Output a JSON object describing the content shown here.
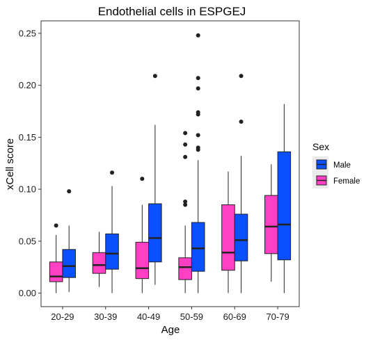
{
  "chart_data": {
    "type": "boxplot",
    "title": "Endothelial cells in ESPGEJ",
    "xlabel": "Age",
    "ylabel": "xCell score",
    "categories": [
      "20-29",
      "30-39",
      "40-49",
      "50-59",
      "60-69",
      "70-79"
    ],
    "ylim": [
      -0.013,
      0.262
    ],
    "yticks": [
      0.0,
      0.05,
      0.1,
      0.15,
      0.2,
      0.25
    ],
    "ytick_labels": [
      "0.00",
      "0.05",
      "0.10",
      "0.15",
      "0.20",
      "0.25"
    ],
    "grid": false,
    "legend": {
      "title": "Sex",
      "placement": "right",
      "entries": [
        {
          "name": "Male",
          "color": "#0a50ff"
        },
        {
          "name": "Female",
          "color": "#ff40c4"
        }
      ]
    },
    "series": [
      {
        "name": "Female",
        "color": "#ff40c4",
        "boxes": [
          {
            "category": "20-29",
            "whisker_low": 0.0,
            "q1": 0.011,
            "median": 0.016,
            "q3": 0.03,
            "whisker_high": 0.056,
            "outliers": [
              0.065
            ]
          },
          {
            "category": "30-39",
            "whisker_low": 0.006,
            "q1": 0.019,
            "median": 0.027,
            "q3": 0.039,
            "whisker_high": 0.059,
            "outliers": []
          },
          {
            "category": "40-49",
            "whisker_low": 0.0,
            "q1": 0.014,
            "median": 0.024,
            "q3": 0.049,
            "whisker_high": 0.085,
            "outliers": [
              0.11
            ]
          },
          {
            "category": "50-59",
            "whisker_low": 0.0,
            "q1": 0.013,
            "median": 0.025,
            "q3": 0.034,
            "whisker_high": 0.065,
            "outliers": [
              0.085,
              0.088,
              0.131,
              0.143,
              0.154
            ]
          },
          {
            "category": "60-69",
            "whisker_low": 0.0,
            "q1": 0.022,
            "median": 0.039,
            "q3": 0.085,
            "whisker_high": 0.117,
            "outliers": []
          },
          {
            "category": "70-79",
            "whisker_low": 0.011,
            "q1": 0.038,
            "median": 0.064,
            "q3": 0.094,
            "whisker_high": 0.124,
            "outliers": []
          }
        ]
      },
      {
        "name": "Male",
        "color": "#0a50ff",
        "boxes": [
          {
            "category": "20-29",
            "whisker_low": 0.001,
            "q1": 0.015,
            "median": 0.026,
            "q3": 0.042,
            "whisker_high": 0.065,
            "outliers": [
              0.098
            ]
          },
          {
            "category": "30-39",
            "whisker_low": 0.0,
            "q1": 0.023,
            "median": 0.038,
            "q3": 0.057,
            "whisker_high": 0.103,
            "outliers": [
              0.116
            ]
          },
          {
            "category": "40-49",
            "whisker_low": 0.008,
            "q1": 0.03,
            "median": 0.053,
            "q3": 0.086,
            "whisker_high": 0.162,
            "outliers": [
              0.209
            ]
          },
          {
            "category": "50-59",
            "whisker_low": 0.0,
            "q1": 0.021,
            "median": 0.043,
            "q3": 0.068,
            "whisker_high": 0.128,
            "outliers": [
              0.138,
              0.14,
              0.152,
              0.172,
              0.174,
              0.197,
              0.207,
              0.248
            ]
          },
          {
            "category": "60-69",
            "whisker_low": 0.0,
            "q1": 0.031,
            "median": 0.051,
            "q3": 0.076,
            "whisker_high": 0.132,
            "outliers": [
              0.165,
              0.209
            ]
          },
          {
            "category": "70-79",
            "whisker_low": 0.0,
            "q1": 0.032,
            "median": 0.066,
            "q3": 0.136,
            "whisker_high": 0.182,
            "outliers": []
          }
        ]
      }
    ]
  }
}
